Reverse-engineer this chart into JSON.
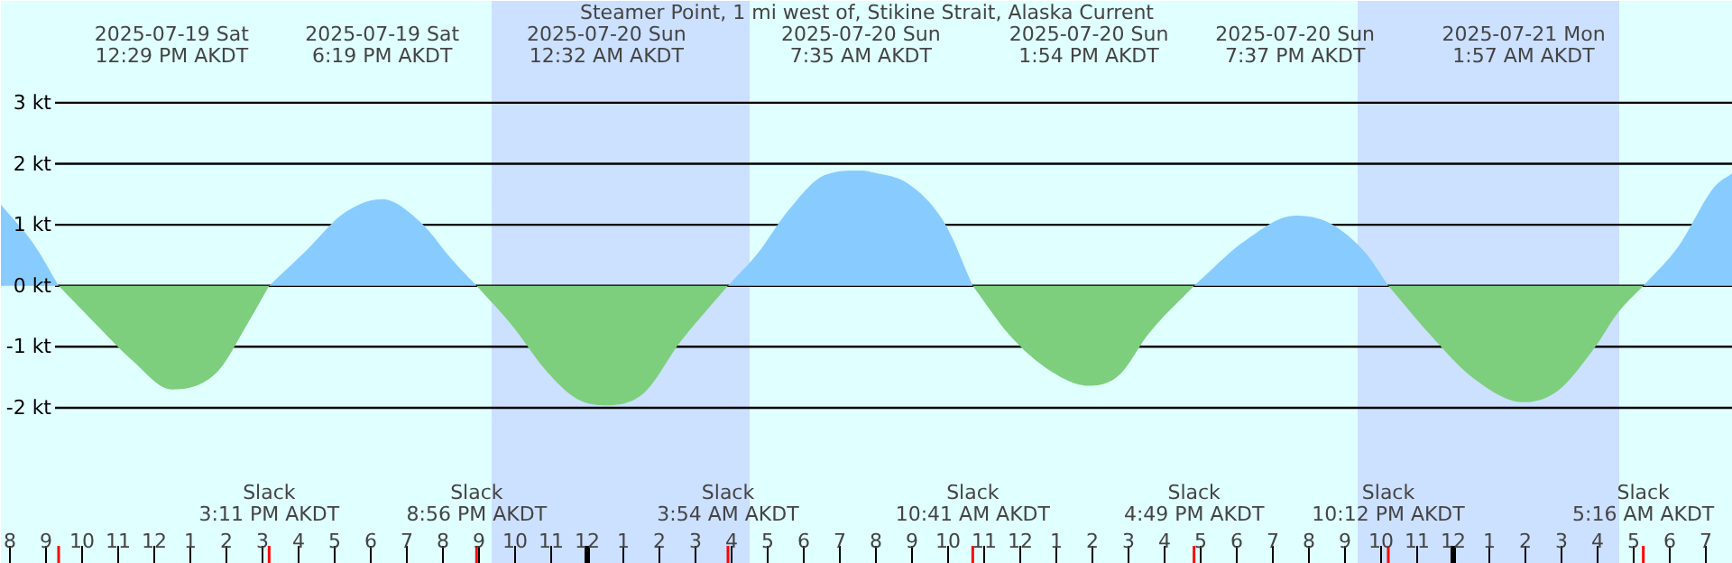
{
  "chart_data": {
    "type": "area",
    "title": "Steamer Point, 1 mi west of, Stikine Strait, Alaska Current",
    "x": [
      "2025-07-19T07:45",
      "2025-07-19T08:39",
      "2025-07-19T09:21",
      "2025-07-19T10:24",
      "2025-07-19T11:24",
      "2025-07-19T12:29",
      "2025-07-19T13:44",
      "2025-07-19T14:34",
      "2025-07-19T15:11",
      "2025-07-19T16:14",
      "2025-07-19T17:14",
      "2025-07-19T18:19",
      "2025-07-19T19:24",
      "2025-07-19T20:14",
      "2025-07-19T20:56",
      "2025-07-19T21:54",
      "2025-07-19T22:54",
      "2025-07-19T23:44",
      "2025-07-20T00:32",
      "2025-07-20T01:34",
      "2025-07-20T02:34",
      "2025-07-20T03:24",
      "2025-07-20T03:54",
      "2025-07-20T04:44",
      "2025-07-20T05:34",
      "2025-07-20T06:34",
      "2025-07-20T07:35",
      "2025-07-20T07:54",
      "2025-07-20T08:54",
      "2025-07-20T09:54",
      "2025-07-20T10:41",
      "2025-07-20T11:44",
      "2025-07-20T12:54",
      "2025-07-20T13:54",
      "2025-07-20T14:44",
      "2025-07-20T15:34",
      "2025-07-20T16:49",
      "2025-07-20T18:14",
      "2025-07-20T19:37",
      "2025-07-20T20:34",
      "2025-07-20T21:34",
      "2025-07-20T22:12",
      "2025-07-20T23:24",
      "2025-07-21T00:34",
      "2025-07-21T01:57",
      "2025-07-21T02:54",
      "2025-07-21T03:54",
      "2025-07-21T04:34",
      "2025-07-21T05:16",
      "2025-07-21T06:14",
      "2025-07-21T07:14",
      "2025-07-21T07:45"
    ],
    "series": [
      {
        "color": "#88ccff",
        "values": [
          1.33,
          0.69,
          0,
          null,
          null,
          null,
          null,
          null,
          0,
          0.59,
          1.18,
          1.42,
          1.03,
          0.44,
          0,
          null,
          null,
          null,
          null,
          null,
          null,
          null,
          0,
          0.54,
          1.23,
          1.81,
          1.89,
          1.86,
          1.67,
          1.03,
          0,
          null,
          null,
          null,
          null,
          null,
          0,
          0.74,
          1.15,
          1.03,
          0.54,
          0,
          null,
          null,
          null,
          null,
          null,
          null,
          0,
          0.64,
          1.62,
          1.85
        ]
      },
      {
        "color": "#7dcf7d",
        "values": [
          null,
          null,
          0,
          -0.64,
          -1.23,
          -1.7,
          -1.42,
          -0.64,
          0,
          null,
          null,
          null,
          null,
          null,
          0,
          -0.64,
          -1.42,
          -1.86,
          -1.96,
          -1.76,
          -0.93,
          -0.34,
          0,
          null,
          null,
          null,
          null,
          null,
          null,
          null,
          0,
          -0.83,
          -1.42,
          -1.64,
          -1.47,
          -0.78,
          0,
          null,
          null,
          null,
          null,
          0,
          -0.83,
          -1.52,
          -1.91,
          -1.72,
          -1.03,
          -0.44,
          0,
          null,
          null,
          null
        ]
      }
    ],
    "xlim": [
      "2025-07-19T07:45",
      "2025-07-21T07:45"
    ],
    "ylim": [
      -4.56,
      4.67
    ],
    "yticks": [
      {
        "value": 3,
        "label": "3 kt"
      },
      {
        "value": 2,
        "label": "2 kt"
      },
      {
        "value": 1,
        "label": "1 kt"
      },
      {
        "value": 0,
        "label": "0 kt"
      },
      {
        "value": -1,
        "label": "-1 kt"
      },
      {
        "value": -2,
        "label": "-2 kt"
      }
    ],
    "xticks": [
      {
        "value": "2025-07-19T08:00",
        "label": "8"
      },
      {
        "value": "2025-07-19T09:00",
        "label": "9"
      },
      {
        "value": "2025-07-19T10:00",
        "label": "10"
      },
      {
        "value": "2025-07-19T11:00",
        "label": "11"
      },
      {
        "value": "2025-07-19T12:00",
        "label": "12"
      },
      {
        "value": "2025-07-19T13:00",
        "label": "1"
      },
      {
        "value": "2025-07-19T14:00",
        "label": "2"
      },
      {
        "value": "2025-07-19T15:00",
        "label": "3"
      },
      {
        "value": "2025-07-19T16:00",
        "label": "4"
      },
      {
        "value": "2025-07-19T17:00",
        "label": "5"
      },
      {
        "value": "2025-07-19T18:00",
        "label": "6"
      },
      {
        "value": "2025-07-19T19:00",
        "label": "7"
      },
      {
        "value": "2025-07-19T20:00",
        "label": "8"
      },
      {
        "value": "2025-07-19T21:00",
        "label": "9"
      },
      {
        "value": "2025-07-19T22:00",
        "label": "10"
      },
      {
        "value": "2025-07-19T23:00",
        "label": "11"
      },
      {
        "value": "2025-07-20T00:00",
        "label": "12"
      },
      {
        "value": "2025-07-20T01:00",
        "label": "1"
      },
      {
        "value": "2025-07-20T02:00",
        "label": "2"
      },
      {
        "value": "2025-07-20T03:00",
        "label": "3"
      },
      {
        "value": "2025-07-20T04:00",
        "label": "4"
      },
      {
        "value": "2025-07-20T05:00",
        "label": "5"
      },
      {
        "value": "2025-07-20T06:00",
        "label": "6"
      },
      {
        "value": "2025-07-20T07:00",
        "label": "7"
      },
      {
        "value": "2025-07-20T08:00",
        "label": "8"
      },
      {
        "value": "2025-07-20T09:00",
        "label": "9"
      },
      {
        "value": "2025-07-20T10:00",
        "label": "10"
      },
      {
        "value": "2025-07-20T11:00",
        "label": "11"
      },
      {
        "value": "2025-07-20T12:00",
        "label": "12"
      },
      {
        "value": "2025-07-20T13:00",
        "label": "1"
      },
      {
        "value": "2025-07-20T14:00",
        "label": "2"
      },
      {
        "value": "2025-07-20T15:00",
        "label": "3"
      },
      {
        "value": "2025-07-20T16:00",
        "label": "4"
      },
      {
        "value": "2025-07-20T17:00",
        "label": "5"
      },
      {
        "value": "2025-07-20T18:00",
        "label": "6"
      },
      {
        "value": "2025-07-20T19:00",
        "label": "7"
      },
      {
        "value": "2025-07-20T20:00",
        "label": "8"
      },
      {
        "value": "2025-07-20T21:00",
        "label": "9"
      },
      {
        "value": "2025-07-20T22:00",
        "label": "10"
      },
      {
        "value": "2025-07-20T23:00",
        "label": "11"
      },
      {
        "value": "2025-07-21T00:00",
        "label": "12"
      },
      {
        "value": "2025-07-21T01:00",
        "label": "1"
      },
      {
        "value": "2025-07-21T02:00",
        "label": "2"
      },
      {
        "value": "2025-07-21T03:00",
        "label": "3"
      },
      {
        "value": "2025-07-21T04:00",
        "label": "4"
      },
      {
        "value": "2025-07-21T05:00",
        "label": "5"
      },
      {
        "value": "2025-07-21T06:00",
        "label": "6"
      },
      {
        "value": "2025-07-21T07:00",
        "label": "7"
      }
    ],
    "grid": "y",
    "bands": [
      {
        "axis": "x",
        "from": "2025-07-19T21:21",
        "to": "2025-07-20T04:30",
        "color": "#cce0ff"
      },
      {
        "axis": "x",
        "from": "2025-07-20T21:21",
        "to": "2025-07-21T04:36",
        "color": "#cce0ff"
      }
    ],
    "annotations": [
      "2025-07-19 Sat\n12:29 PM AKDT",
      "2025-07-19 Sat\n6:19 PM AKDT",
      "2025-07-20 Sun\n12:32 AM AKDT",
      "2025-07-20 Sun\n7:35 AM AKDT",
      "2025-07-20 Sun\n1:54 PM AKDT",
      "2025-07-20 Sun\n7:37 PM AKDT",
      "2025-07-21 Mon\n1:57 AM AKDT",
      "Slack\n3:11 PM AKDT",
      "Slack\n8:56 PM AKDT",
      "Slack\n3:54 AM AKDT",
      "Slack\n10:41 AM AKDT",
      "Slack\n4:49 PM AKDT",
      "Slack\n10:12 PM AKDT",
      "Slack\n5:16 AM AKDT"
    ]
  }
}
